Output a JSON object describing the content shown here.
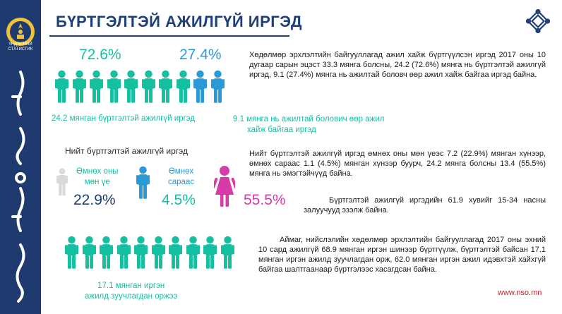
{
  "header": {
    "title": "БҮРТГЭЛТЭЙ АЖИЛГҮЙ ИРГЭД"
  },
  "brand": {
    "logo_line1": "ҮНДЭСНИЙ",
    "logo_line2": "СТАТИСТИК"
  },
  "colors": {
    "teal": "#15c0a0",
    "blue": "#2a9ad6",
    "pink": "#d63ca8",
    "navy": "#1f3f77"
  },
  "section1": {
    "pct_registered": "72.6%",
    "pct_employed": "27.4%",
    "caption_registered": "24.2 мянган бүртгэлтэй ажилгүй иргэд",
    "caption_employed_line1": "9.1 мянга нь ажилтай болович өөр ажил",
    "caption_employed_line2": "хайж байгаа иргэд",
    "text": "Хөдөлмөр эрхлэлтийн байгууллагад ажил хайж бүртгүүлсэн иргэд 2017 оны 10 дугаар сарын эцэст 33.3 мянга болсны, 24.2 (72.6%) мянга нь бүртгэлтэй ажилгүй иргэд, 9.1 (27.4%) мянга нь ажилтай боловч өөр ажил хайж байгаа иргэд байна."
  },
  "section2": {
    "heading": "Нийт бүртгэлтэй ажилгүй иргэд",
    "label_same_line1": "Өмнөх оны",
    "label_same_line2": "мөн үе",
    "pct_same": "22.9%",
    "label_prev_line1": "Өмнөх",
    "label_prev_line2": "сараас",
    "pct_prev": "4.5%",
    "pct_women": "55.5%",
    "text": "Нийт бүртгэлтэй ажилгүй иргэд өмнөх оны мөн үеэс 7.2 (22.9%) мянган хүнээр, өмнөх сараас 1.1 (4.5%) мянган хүнээр буурч, 24.2 мянга болсны 13.4 (55.5%) мянга нь эмэгтэйчүүд байна.",
    "youth_text": "Бүртгэлтэй ажилгүй иргэдийн 61.9 хувийг 15-34 насны залуучууд эзэлж байна."
  },
  "section3": {
    "caption_line1": "17.1 мянган иргэн",
    "caption_line2": "ажилд зуучлагдан оржээ",
    "text": "Аймаг, нийслэлийн хөдөлмөр эрхлэлтийн байгууллагад 2017 оны эхний 10 сард ажилгүй 68.9 мянган иргэн шинээр бүртгүүлж, бүртгэлтэй байсан 17.1 мянган иргэн ажилд зуучлагдан орж, 62.0 мянган иргэн ажил идэвхтэй хайхгүй байгаа шалтгаанаар бүртгэлээс хасагдсан байна."
  },
  "footer": {
    "url": "www.nso.mn"
  }
}
